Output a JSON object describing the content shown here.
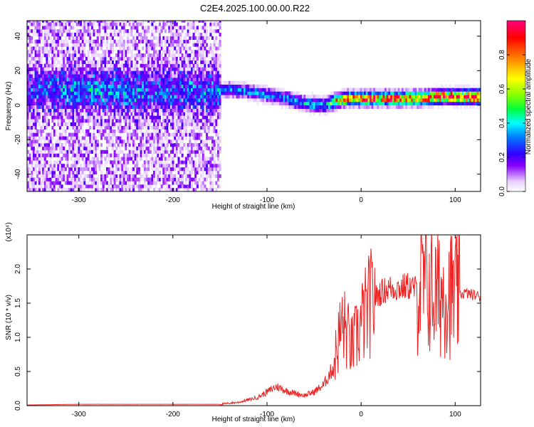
{
  "title": "C2E4.2025.100.00.00.R22",
  "chart_data": [
    {
      "type": "heatmap",
      "xlabel": "Height of straight line (km)",
      "ylabel": "Frequency (Hz)",
      "xlim": [
        -355,
        127
      ],
      "ylim": [
        -50,
        49
      ],
      "xticks": [
        -300,
        -200,
        -100,
        0,
        100
      ],
      "yticks": [
        -40,
        -20,
        0,
        20,
        40
      ],
      "colorbar": {
        "label": "Normalized spectral amplitude",
        "range": [
          0.0,
          1.0
        ],
        "ticks": [
          0.0,
          0.2,
          0.4,
          0.6,
          0.8
        ],
        "colormap": [
          "#ffffff",
          "#e6ccff",
          "#8a00ff",
          "#3000ff",
          "#0080ff",
          "#00ffff",
          "#00ff40",
          "#80ff00",
          "#ffff00",
          "#ff8000",
          "#ff0000",
          "#ff0080"
        ]
      },
      "ridge": {
        "x": [
          -350,
          -300,
          -250,
          -200,
          -160,
          -140,
          -120,
          -100,
          -80,
          -60,
          -40,
          -25,
          -15,
          0,
          20,
          40,
          60,
          80,
          100,
          127
        ],
        "frequency": [
          8,
          8,
          7,
          7,
          7,
          8,
          7,
          5,
          3,
          0,
          -1,
          2,
          3,
          3,
          3,
          3,
          3,
          4,
          4,
          4
        ],
        "amplitude": [
          0.2,
          0.25,
          0.25,
          0.2,
          0.2,
          0.35,
          0.35,
          0.35,
          0.35,
          0.4,
          0.45,
          0.75,
          0.8,
          0.85,
          0.85,
          0.85,
          0.85,
          0.9,
          0.95,
          0.95
        ]
      }
    },
    {
      "type": "line",
      "xlabel": "Height of straight line (km)",
      "ylabel": "SNR (10 * v/v)",
      "y_multiplier": "(x10⁴)",
      "xlim": [
        -355,
        127
      ],
      "ylim": [
        0,
        2.5
      ],
      "xticks": [
        -300,
        -200,
        -100,
        0,
        100
      ],
      "yticks": [
        0.0,
        0.5,
        1.0,
        1.5,
        2.0
      ],
      "color": "#ee2222",
      "series": [
        {
          "x": [
            -355,
            -300,
            -250,
            -200,
            -150,
            -130,
            -110,
            -100,
            -90,
            -80,
            -70,
            -60,
            -50,
            -40,
            -30,
            -25,
            -20,
            -15,
            -10,
            -5,
            0,
            10,
            20,
            30,
            40,
            50,
            60,
            70,
            80,
            90,
            100,
            110,
            120,
            127
          ],
          "values": [
            0.01,
            0.02,
            0.02,
            0.02,
            0.02,
            0.05,
            0.12,
            0.2,
            0.28,
            0.22,
            0.18,
            0.15,
            0.2,
            0.3,
            0.55,
            0.9,
            1.2,
            1.05,
            0.85,
            1.0,
            1.2,
            1.5,
            1.65,
            1.72,
            1.72,
            1.75,
            1.7,
            1.75,
            1.6,
            1.7,
            1.6,
            1.65,
            1.62,
            1.6
          ]
        }
      ]
    }
  ]
}
